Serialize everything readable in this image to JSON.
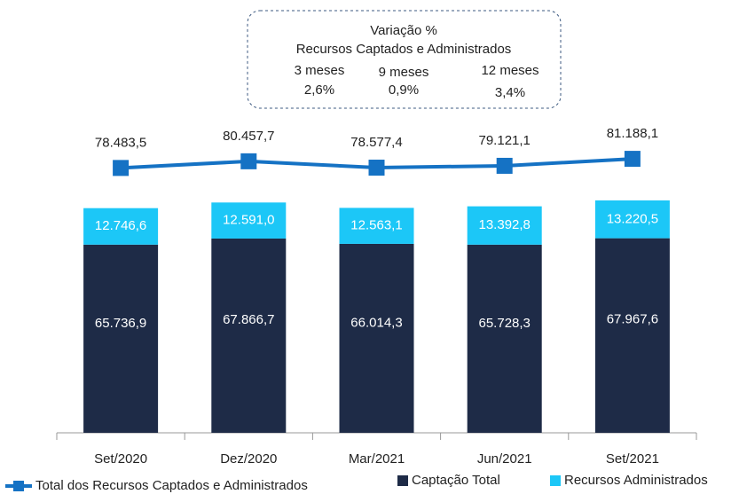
{
  "chart_data": {
    "type": "bar",
    "categories": [
      "Set/2020",
      "Dez/2020",
      "Mar/2021",
      "Jun/2021",
      "Set/2021"
    ],
    "series": [
      {
        "name": "Captação Total",
        "type": "bar",
        "color": "#1e2b47",
        "values": [
          65736.9,
          67866.7,
          66014.3,
          65728.3,
          67967.6
        ],
        "value_labels": [
          "65.736,9",
          "67.866,7",
          "66.014,3",
          "65.728,3",
          "67.967,6"
        ]
      },
      {
        "name": "Recursos Administrados",
        "type": "bar",
        "color": "#1cc7f7",
        "values": [
          12746.6,
          12591.0,
          12563.1,
          13392.8,
          13220.5
        ],
        "value_labels": [
          "12.746,6",
          "12.591,0",
          "12.563,1",
          "13.392,8",
          "13.220,5"
        ]
      },
      {
        "name": "Total dos Recursos Captados e Administrados",
        "type": "line",
        "axis": "y2",
        "color": "#1572c4",
        "values": [
          78483.5,
          80457.7,
          78577.4,
          79121.1,
          81188.1
        ],
        "value_labels": [
          "78.483,5",
          "80.457,7",
          "78.577,4",
          "79.121,1",
          "81.188,1"
        ]
      }
    ],
    "ylim": [
      0,
      145000
    ],
    "y2lim": [
      0,
      123000
    ],
    "stacked": true,
    "legend": "bottom",
    "annotation": {
      "title": "Variação %",
      "subtitle": "Recursos Captados e Administrados",
      "labels": [
        "3 meses",
        "9 meses",
        "12 meses"
      ],
      "values": [
        2.6,
        0.9,
        3.4
      ],
      "value_labels": [
        "2,6%",
        "0,9%",
        "3,4%"
      ]
    }
  }
}
